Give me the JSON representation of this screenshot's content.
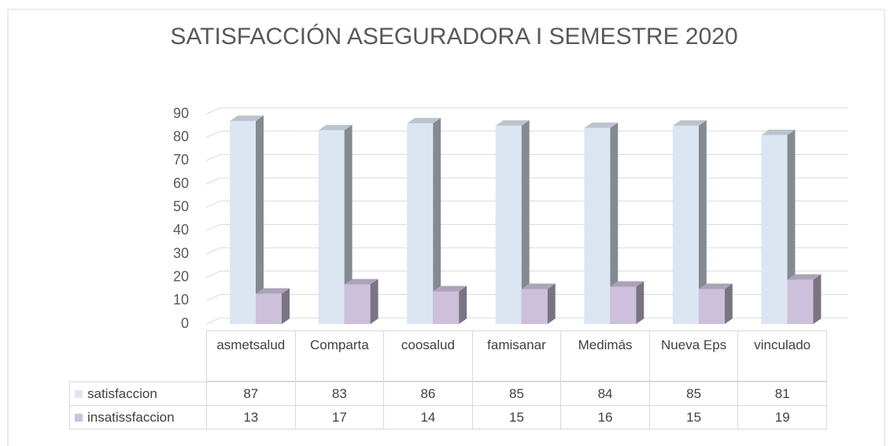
{
  "chart_data": {
    "type": "bar",
    "title": "SATISFACCIÓN ASEGURADORA I SEMESTRE 2020",
    "categories": [
      "asmetsalud",
      "Comparta",
      "coosalud",
      "famisanar",
      "Medimás",
      "Nueva Eps",
      "vinculado"
    ],
    "series": [
      {
        "name": "satisfaccion",
        "color": "#dce6f2",
        "values": [
          87,
          83,
          86,
          85,
          84,
          85,
          81
        ]
      },
      {
        "name": "insatissfaccion",
        "color": "#ccc0da",
        "values": [
          13,
          17,
          14,
          15,
          16,
          15,
          19
        ]
      }
    ],
    "ylim": [
      0,
      90
    ],
    "yticks": [
      0,
      10,
      20,
      30,
      40,
      50,
      60,
      70,
      80,
      90
    ],
    "grid": true
  }
}
